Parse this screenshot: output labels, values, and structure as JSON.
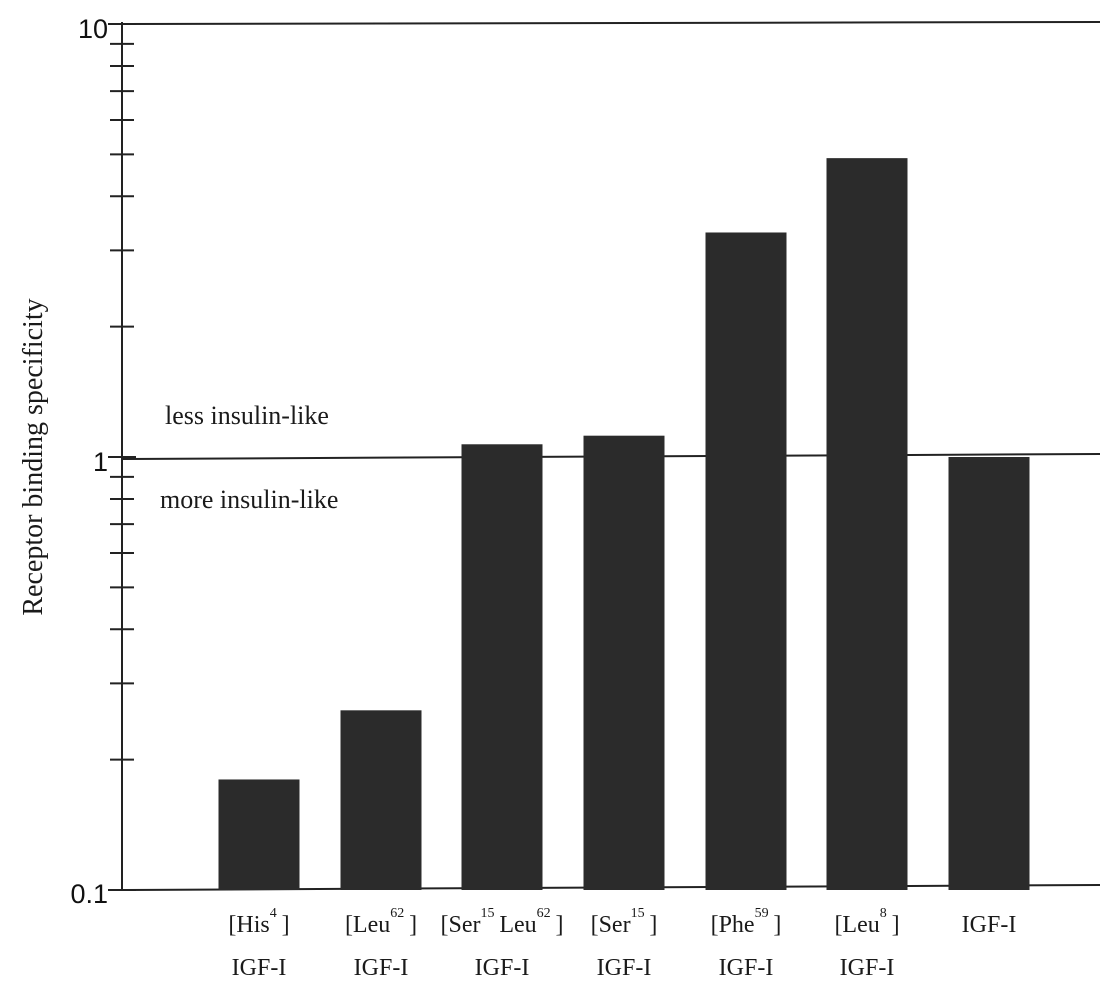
{
  "chart_data": {
    "type": "bar",
    "title": "",
    "xlabel": "",
    "ylabel": "Receptor binding specificity",
    "yscale": "log",
    "ylim": [
      0.1,
      10
    ],
    "y_tick_labels": [
      "10",
      "1",
      "0.1"
    ],
    "reference_line": 1,
    "annotations": {
      "above": "less insulin-like",
      "below": "more insulin-like"
    },
    "categories": [
      {
        "pre": "[His",
        "sup": "4",
        "post": "]",
        "line2": "IGF-I"
      },
      {
        "pre": "[Leu",
        "sup": "62",
        "post": "]",
        "line2": "IGF-I"
      },
      {
        "pre": "[Ser",
        "sup": "15",
        "mid": "Leu",
        "sup2": "62",
        "post": "]",
        "line2": "IGF-I"
      },
      {
        "pre": "[Ser",
        "sup": "15",
        "post": "]",
        "line2": "IGF-I"
      },
      {
        "pre": "[Phe",
        "sup": "59",
        "post": "]",
        "line2": "IGF-I"
      },
      {
        "pre": "[Leu",
        "sup": "8",
        "post": "]",
        "line2": "IGF-I"
      },
      {
        "pre": "IGF-I",
        "line2": ""
      }
    ],
    "values": [
      0.18,
      0.26,
      1.07,
      1.12,
      3.3,
      4.9,
      1.0
    ],
    "bar_color": "#2b2b2b",
    "grid": false
  }
}
